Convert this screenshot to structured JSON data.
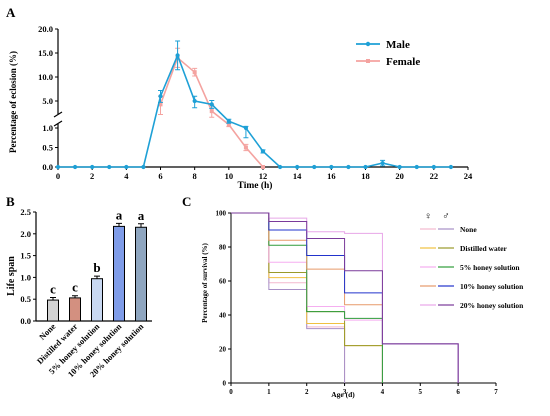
{
  "chart_data": [
    {
      "panel": "A",
      "type": "line",
      "xlabel": "Time (h)",
      "ylabel": "Percentage of eclosion (%)",
      "xlim": [
        0,
        24
      ],
      "x_ticks": [
        "0",
        "2",
        "4",
        "6",
        "8",
        "10",
        "12",
        "14",
        "16",
        "18",
        "20",
        "22",
        "24"
      ],
      "y_axis_break": true,
      "y_ticks_lower": [
        "0.0",
        "0.5",
        "1.0"
      ],
      "y_ticks_upper": [
        "5.0",
        "10.0",
        "15.0",
        "20.0"
      ],
      "legend_position": "top-right",
      "series": [
        {
          "name": "Male",
          "color": "#1ea0d6",
          "x": [
            0,
            1,
            2,
            3,
            4,
            5,
            6,
            7,
            8,
            9,
            10,
            11,
            12,
            13,
            14,
            15,
            16,
            17,
            18,
            19,
            20,
            21,
            22,
            23
          ],
          "y": [
            0,
            0,
            0,
            0,
            0,
            0,
            6.0,
            14.5,
            5.0,
            4.5,
            2.0,
            1.0,
            0.4,
            0,
            0,
            0,
            0,
            0,
            0,
            0.1,
            0,
            0,
            0,
            0
          ],
          "err": [
            0,
            0,
            0,
            0,
            0,
            0,
            1.2,
            3.0,
            1.0,
            0.6,
            0.3,
            0.25,
            0.04,
            0,
            0,
            0,
            0,
            0,
            0,
            0.07,
            0,
            0,
            0,
            0
          ]
        },
        {
          "name": "Female",
          "color": "#f4a3a0",
          "x": [
            6,
            7,
            8,
            9,
            10,
            11,
            12
          ],
          "y": [
            4.5,
            14.0,
            11.0,
            3.5,
            1.5,
            0.5,
            0
          ],
          "err": [
            1.5,
            2.0,
            0.8,
            0.9,
            0.3,
            0.08,
            0
          ]
        }
      ]
    },
    {
      "panel": "B",
      "type": "bar",
      "ylabel": "Life span",
      "ylim": [
        0,
        2.5
      ],
      "y_ticks": [
        "0.0",
        "0.5",
        "1.0",
        "1.5",
        "2.0",
        "2.5"
      ],
      "categories": [
        "None",
        "Distilled water",
        "5% honey solution",
        "10% honey solution",
        "20% honey solution"
      ],
      "values": [
        0.48,
        0.53,
        0.97,
        2.17,
        2.15
      ],
      "errors": [
        0.06,
        0.05,
        0.06,
        0.07,
        0.08
      ],
      "letters": [
        "c",
        "c",
        "b",
        "a",
        "a"
      ],
      "colors": [
        "#d3d3d3",
        "#d39080",
        "#c8d8f2",
        "#7f9ce8",
        "#8fa6c0"
      ]
    },
    {
      "panel": "C",
      "type": "line",
      "xlabel": "Age (d)",
      "ylabel": "Percentage of survival (%)",
      "xlim": [
        0,
        7
      ],
      "ylim": [
        0,
        100
      ],
      "x_ticks": [
        "0",
        "1",
        "2",
        "3",
        "4",
        "5",
        "6",
        "7"
      ],
      "y_ticks": [
        "0",
        "20",
        "40",
        "60",
        "80",
        "100"
      ],
      "legend_symbols": [
        "♀",
        "♂"
      ],
      "legend_position": "right",
      "series": [
        {
          "name": "None",
          "female_color": "#f3b9ce",
          "male_color": "#a78fc6",
          "female_x": [
            0,
            1,
            2,
            3
          ],
          "female_y": [
            100,
            59,
            33,
            0
          ],
          "male_x": [
            0,
            1,
            2,
            3
          ],
          "male_y": [
            100,
            55,
            32,
            0
          ]
        },
        {
          "name": "Distilled water",
          "female_color": "#f0c040",
          "male_color": "#9a9a2a",
          "female_x": [
            0,
            1,
            2,
            3,
            4
          ],
          "female_y": [
            100,
            62,
            35,
            22,
            0
          ],
          "male_x": [
            0,
            1,
            2,
            3,
            4
          ],
          "male_y": [
            100,
            65,
            42,
            22,
            0
          ]
        },
        {
          "name": "5% honey solution",
          "female_color": "#f5aef0",
          "male_color": "#2e9c3a",
          "female_x": [
            0,
            1,
            2,
            3,
            4
          ],
          "female_y": [
            100,
            71,
            45,
            37,
            0
          ],
          "male_x": [
            0,
            1,
            2,
            3,
            4
          ],
          "male_y": [
            100,
            81,
            42,
            38,
            0
          ]
        },
        {
          "name": "10% honey solution",
          "female_color": "#e79a6a",
          "male_color": "#2233cc",
          "female_x": [
            0,
            1,
            2,
            3,
            4,
            6
          ],
          "female_y": [
            100,
            84,
            67,
            46,
            23,
            0
          ],
          "male_x": [
            0,
            1,
            2,
            3,
            4,
            6
          ],
          "male_y": [
            100,
            90,
            75,
            53,
            23,
            0
          ]
        },
        {
          "name": "20% honey solution",
          "female_color": "#e8a6e8",
          "male_color": "#7a3a9a",
          "female_x": [
            0,
            1,
            2,
            3,
            4,
            6
          ],
          "female_y": [
            100,
            97,
            89,
            88,
            23,
            0
          ],
          "male_x": [
            0,
            1,
            2,
            3,
            4,
            6
          ],
          "male_y": [
            100,
            95,
            85,
            66,
            23,
            0
          ]
        }
      ]
    }
  ],
  "panel_labels": [
    "A",
    "B",
    "C"
  ]
}
